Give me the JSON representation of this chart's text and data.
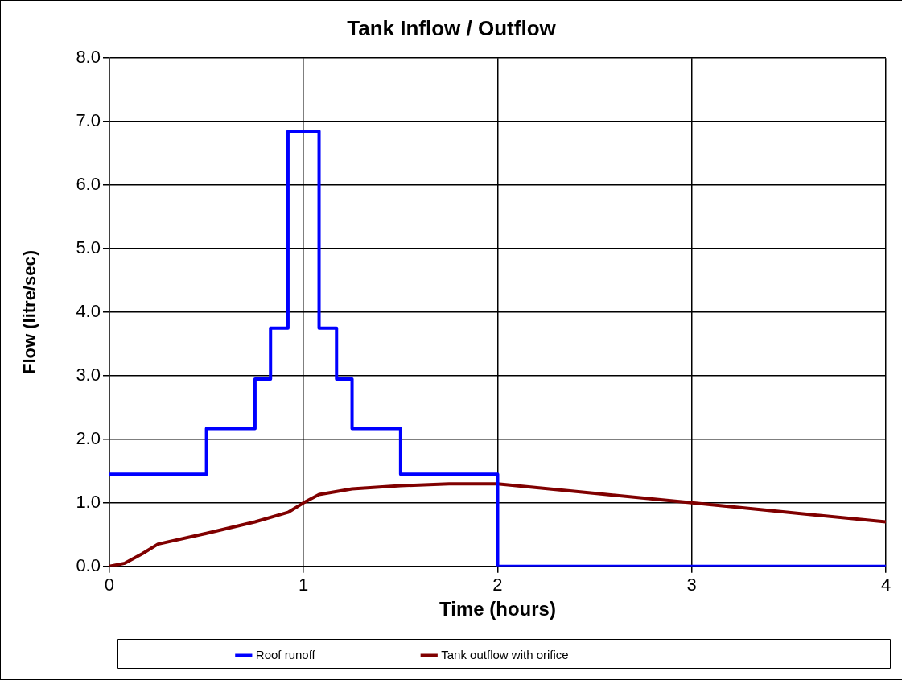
{
  "chart_data": {
    "type": "line",
    "title": "Tank Inflow / Outflow",
    "xlabel": "Time (hours)",
    "ylabel": "Flow (litre/sec)",
    "xlim": [
      0,
      4
    ],
    "xticks": [
      0,
      1,
      2,
      3,
      4
    ],
    "ylim": [
      0,
      8
    ],
    "yticks": [
      {
        "value": 0,
        "label": "0.0"
      },
      {
        "value": 1,
        "label": "1.0"
      },
      {
        "value": 2,
        "label": "2.0"
      },
      {
        "value": 3,
        "label": "3.0"
      },
      {
        "value": 4,
        "label": "4.0"
      },
      {
        "value": 5,
        "label": "5.0"
      },
      {
        "value": 6,
        "label": "6.0"
      },
      {
        "value": 7,
        "label": "7.0"
      },
      {
        "value": 8,
        "label": "8.0"
      }
    ],
    "grid": true,
    "legend": "bottom",
    "marker": "none",
    "line_style": "solid",
    "series": [
      {
        "name": "Roof runoff",
        "type": "step",
        "color": "#0000ff",
        "x": [
          0,
          0.5,
          0.75,
          0.83,
          0.92,
          1.08,
          1.17,
          1.25,
          1.5,
          2,
          4
        ],
        "values": [
          1.45,
          2.17,
          2.95,
          3.75,
          6.85,
          3.75,
          2.95,
          2.17,
          1.45,
          0,
          0
        ]
      },
      {
        "name": "Tank outflow with orifice",
        "type": "line",
        "color": "#800000",
        "x": [
          0,
          0.08,
          0.17,
          0.25,
          0.5,
          0.75,
          0.92,
          1,
          1.08,
          1.25,
          1.5,
          1.75,
          2,
          2.5,
          3,
          3.5,
          4
        ],
        "values": [
          0,
          0.05,
          0.2,
          0.35,
          0.52,
          0.7,
          0.85,
          1.0,
          1.13,
          1.22,
          1.27,
          1.3,
          1.3,
          1.15,
          1.0,
          0.85,
          0.7
        ]
      }
    ]
  }
}
